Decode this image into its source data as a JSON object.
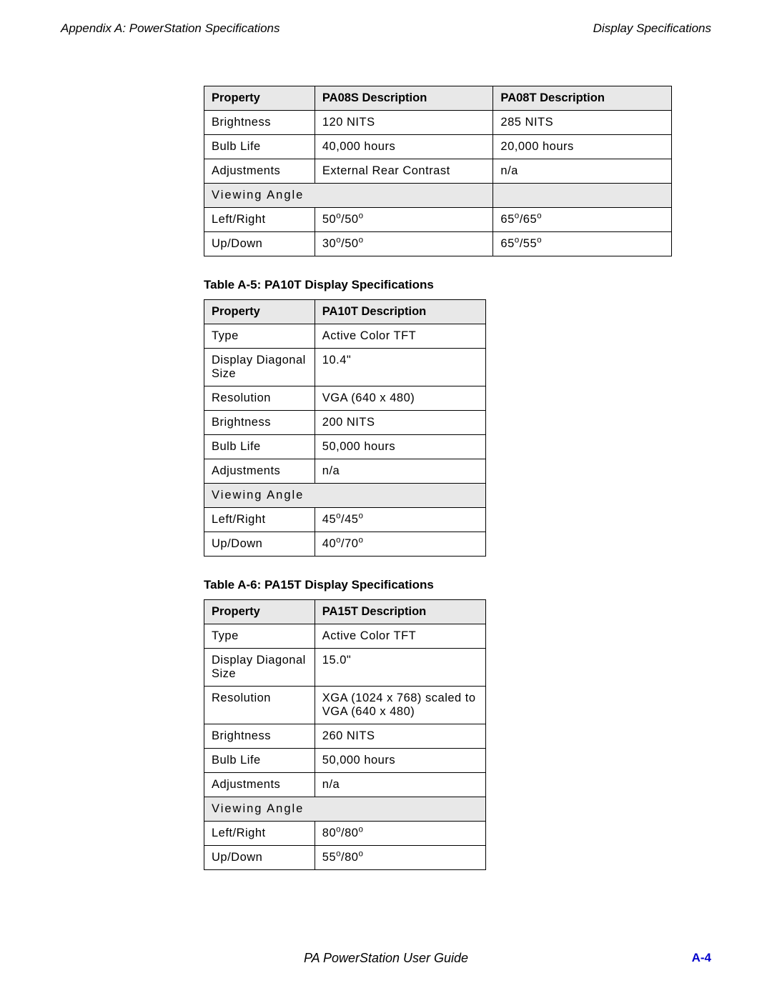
{
  "header": {
    "left": "Appendix A: PowerStation Specifications",
    "right": "Display Specifications"
  },
  "footer": {
    "title": "PA PowerStation User Guide",
    "page": "A-4",
    "page_color": "#0000cc"
  },
  "colors": {
    "header_bg": "#e8e8e8",
    "border": "#000000",
    "text": "#000000"
  },
  "table1": {
    "columns": [
      "Property",
      "PA08S Description",
      "PA08T Description"
    ],
    "rows": [
      {
        "cells": [
          "Brightness",
          "120 NITS",
          "285 NITS"
        ]
      },
      {
        "cells": [
          "Bulb Life",
          "40,000 hours",
          "20,000 hours"
        ]
      },
      {
        "cells": [
          "Adjustments",
          "External Rear Contrast",
          "n/a"
        ]
      },
      {
        "section": true,
        "cells": [
          "Viewing Angle",
          ""
        ],
        "spans": [
          2,
          1
        ]
      },
      {
        "cells": [
          "Left/Right",
          "50°/50°",
          "65°/65°"
        ],
        "deg": true
      },
      {
        "cells": [
          "Up/Down",
          "30°/50°",
          "65°/55°"
        ],
        "deg": true
      }
    ]
  },
  "caption2": "Table A-5: PA10T Display Specifications",
  "table2": {
    "columns": [
      "Property",
      "PA10T Description"
    ],
    "rows": [
      {
        "cells": [
          "Type",
          "Active Color TFT"
        ]
      },
      {
        "cells": [
          "Display Diagonal Size",
          "10.4\""
        ]
      },
      {
        "cells": [
          "Resolution",
          "VGA (640 x 480)"
        ]
      },
      {
        "cells": [
          "Brightness",
          "200 NITS"
        ]
      },
      {
        "cells": [
          "Bulb Life",
          "50,000 hours"
        ]
      },
      {
        "cells": [
          "Adjustments",
          "n/a"
        ]
      },
      {
        "section": true,
        "cells": [
          "Viewing Angle"
        ],
        "spans": [
          2
        ]
      },
      {
        "cells": [
          "Left/Right",
          "45°/45°"
        ],
        "deg": true
      },
      {
        "cells": [
          "Up/Down",
          "40°/70°"
        ],
        "deg": true
      }
    ]
  },
  "caption3": "Table A-6: PA15T Display Specifications",
  "table3": {
    "columns": [
      "Property",
      "PA15T Description"
    ],
    "rows": [
      {
        "cells": [
          "Type",
          "Active Color TFT"
        ]
      },
      {
        "cells": [
          "Display Diagonal Size",
          "15.0\""
        ]
      },
      {
        "cells": [
          "Resolution",
          "XGA (1024 x 768) scaled to VGA (640 x 480)"
        ]
      },
      {
        "cells": [
          "Brightness",
          "260 NITS"
        ]
      },
      {
        "cells": [
          "Bulb Life",
          "50,000 hours"
        ]
      },
      {
        "cells": [
          "Adjustments",
          "n/a"
        ]
      },
      {
        "section": true,
        "cells": [
          "Viewing Angle"
        ],
        "spans": [
          2
        ]
      },
      {
        "cells": [
          "Left/Right",
          "80°/80°"
        ],
        "deg": true
      },
      {
        "cells": [
          "Up/Down",
          "55°/80°"
        ],
        "deg": true
      }
    ]
  }
}
